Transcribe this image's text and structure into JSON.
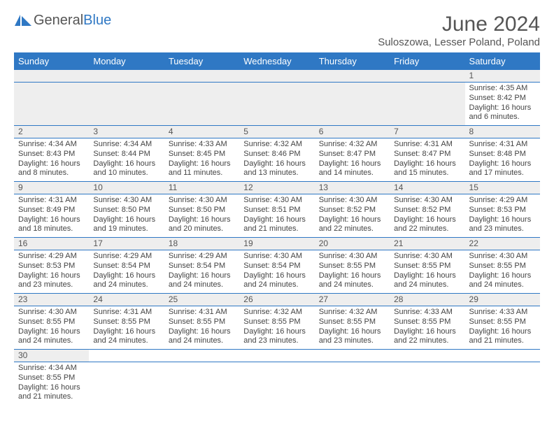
{
  "logo": {
    "primary": "General",
    "secondary": "Blue"
  },
  "title": "June 2024",
  "location": "Suloszowa, Lesser Poland, Poland",
  "day_headers": [
    "Sunday",
    "Monday",
    "Tuesday",
    "Wednesday",
    "Thursday",
    "Friday",
    "Saturday"
  ],
  "colors": {
    "header_bg": "#2f78c4",
    "header_text": "#ffffff",
    "daynum_bg": "#eeeeee",
    "row_border": "#2f78c4",
    "text": "#444444"
  },
  "weeks": [
    [
      null,
      null,
      null,
      null,
      null,
      null,
      {
        "n": "1",
        "sr": "Sunrise: 4:35 AM",
        "ss": "Sunset: 8:42 PM",
        "dl1": "Daylight: 16 hours",
        "dl2": "and 6 minutes."
      }
    ],
    [
      {
        "n": "2",
        "sr": "Sunrise: 4:34 AM",
        "ss": "Sunset: 8:43 PM",
        "dl1": "Daylight: 16 hours",
        "dl2": "and 8 minutes."
      },
      {
        "n": "3",
        "sr": "Sunrise: 4:34 AM",
        "ss": "Sunset: 8:44 PM",
        "dl1": "Daylight: 16 hours",
        "dl2": "and 10 minutes."
      },
      {
        "n": "4",
        "sr": "Sunrise: 4:33 AM",
        "ss": "Sunset: 8:45 PM",
        "dl1": "Daylight: 16 hours",
        "dl2": "and 11 minutes."
      },
      {
        "n": "5",
        "sr": "Sunrise: 4:32 AM",
        "ss": "Sunset: 8:46 PM",
        "dl1": "Daylight: 16 hours",
        "dl2": "and 13 minutes."
      },
      {
        "n": "6",
        "sr": "Sunrise: 4:32 AM",
        "ss": "Sunset: 8:47 PM",
        "dl1": "Daylight: 16 hours",
        "dl2": "and 14 minutes."
      },
      {
        "n": "7",
        "sr": "Sunrise: 4:31 AM",
        "ss": "Sunset: 8:47 PM",
        "dl1": "Daylight: 16 hours",
        "dl2": "and 15 minutes."
      },
      {
        "n": "8",
        "sr": "Sunrise: 4:31 AM",
        "ss": "Sunset: 8:48 PM",
        "dl1": "Daylight: 16 hours",
        "dl2": "and 17 minutes."
      }
    ],
    [
      {
        "n": "9",
        "sr": "Sunrise: 4:31 AM",
        "ss": "Sunset: 8:49 PM",
        "dl1": "Daylight: 16 hours",
        "dl2": "and 18 minutes."
      },
      {
        "n": "10",
        "sr": "Sunrise: 4:30 AM",
        "ss": "Sunset: 8:50 PM",
        "dl1": "Daylight: 16 hours",
        "dl2": "and 19 minutes."
      },
      {
        "n": "11",
        "sr": "Sunrise: 4:30 AM",
        "ss": "Sunset: 8:50 PM",
        "dl1": "Daylight: 16 hours",
        "dl2": "and 20 minutes."
      },
      {
        "n": "12",
        "sr": "Sunrise: 4:30 AM",
        "ss": "Sunset: 8:51 PM",
        "dl1": "Daylight: 16 hours",
        "dl2": "and 21 minutes."
      },
      {
        "n": "13",
        "sr": "Sunrise: 4:30 AM",
        "ss": "Sunset: 8:52 PM",
        "dl1": "Daylight: 16 hours",
        "dl2": "and 22 minutes."
      },
      {
        "n": "14",
        "sr": "Sunrise: 4:30 AM",
        "ss": "Sunset: 8:52 PM",
        "dl1": "Daylight: 16 hours",
        "dl2": "and 22 minutes."
      },
      {
        "n": "15",
        "sr": "Sunrise: 4:29 AM",
        "ss": "Sunset: 8:53 PM",
        "dl1": "Daylight: 16 hours",
        "dl2": "and 23 minutes."
      }
    ],
    [
      {
        "n": "16",
        "sr": "Sunrise: 4:29 AM",
        "ss": "Sunset: 8:53 PM",
        "dl1": "Daylight: 16 hours",
        "dl2": "and 23 minutes."
      },
      {
        "n": "17",
        "sr": "Sunrise: 4:29 AM",
        "ss": "Sunset: 8:54 PM",
        "dl1": "Daylight: 16 hours",
        "dl2": "and 24 minutes."
      },
      {
        "n": "18",
        "sr": "Sunrise: 4:29 AM",
        "ss": "Sunset: 8:54 PM",
        "dl1": "Daylight: 16 hours",
        "dl2": "and 24 minutes."
      },
      {
        "n": "19",
        "sr": "Sunrise: 4:30 AM",
        "ss": "Sunset: 8:54 PM",
        "dl1": "Daylight: 16 hours",
        "dl2": "and 24 minutes."
      },
      {
        "n": "20",
        "sr": "Sunrise: 4:30 AM",
        "ss": "Sunset: 8:55 PM",
        "dl1": "Daylight: 16 hours",
        "dl2": "and 24 minutes."
      },
      {
        "n": "21",
        "sr": "Sunrise: 4:30 AM",
        "ss": "Sunset: 8:55 PM",
        "dl1": "Daylight: 16 hours",
        "dl2": "and 24 minutes."
      },
      {
        "n": "22",
        "sr": "Sunrise: 4:30 AM",
        "ss": "Sunset: 8:55 PM",
        "dl1": "Daylight: 16 hours",
        "dl2": "and 24 minutes."
      }
    ],
    [
      {
        "n": "23",
        "sr": "Sunrise: 4:30 AM",
        "ss": "Sunset: 8:55 PM",
        "dl1": "Daylight: 16 hours",
        "dl2": "and 24 minutes."
      },
      {
        "n": "24",
        "sr": "Sunrise: 4:31 AM",
        "ss": "Sunset: 8:55 PM",
        "dl1": "Daylight: 16 hours",
        "dl2": "and 24 minutes."
      },
      {
        "n": "25",
        "sr": "Sunrise: 4:31 AM",
        "ss": "Sunset: 8:55 PM",
        "dl1": "Daylight: 16 hours",
        "dl2": "and 24 minutes."
      },
      {
        "n": "26",
        "sr": "Sunrise: 4:32 AM",
        "ss": "Sunset: 8:55 PM",
        "dl1": "Daylight: 16 hours",
        "dl2": "and 23 minutes."
      },
      {
        "n": "27",
        "sr": "Sunrise: 4:32 AM",
        "ss": "Sunset: 8:55 PM",
        "dl1": "Daylight: 16 hours",
        "dl2": "and 23 minutes."
      },
      {
        "n": "28",
        "sr": "Sunrise: 4:33 AM",
        "ss": "Sunset: 8:55 PM",
        "dl1": "Daylight: 16 hours",
        "dl2": "and 22 minutes."
      },
      {
        "n": "29",
        "sr": "Sunrise: 4:33 AM",
        "ss": "Sunset: 8:55 PM",
        "dl1": "Daylight: 16 hours",
        "dl2": "and 21 minutes."
      }
    ],
    [
      {
        "n": "30",
        "sr": "Sunrise: 4:34 AM",
        "ss": "Sunset: 8:55 PM",
        "dl1": "Daylight: 16 hours",
        "dl2": "and 21 minutes."
      },
      null,
      null,
      null,
      null,
      null,
      null
    ]
  ]
}
